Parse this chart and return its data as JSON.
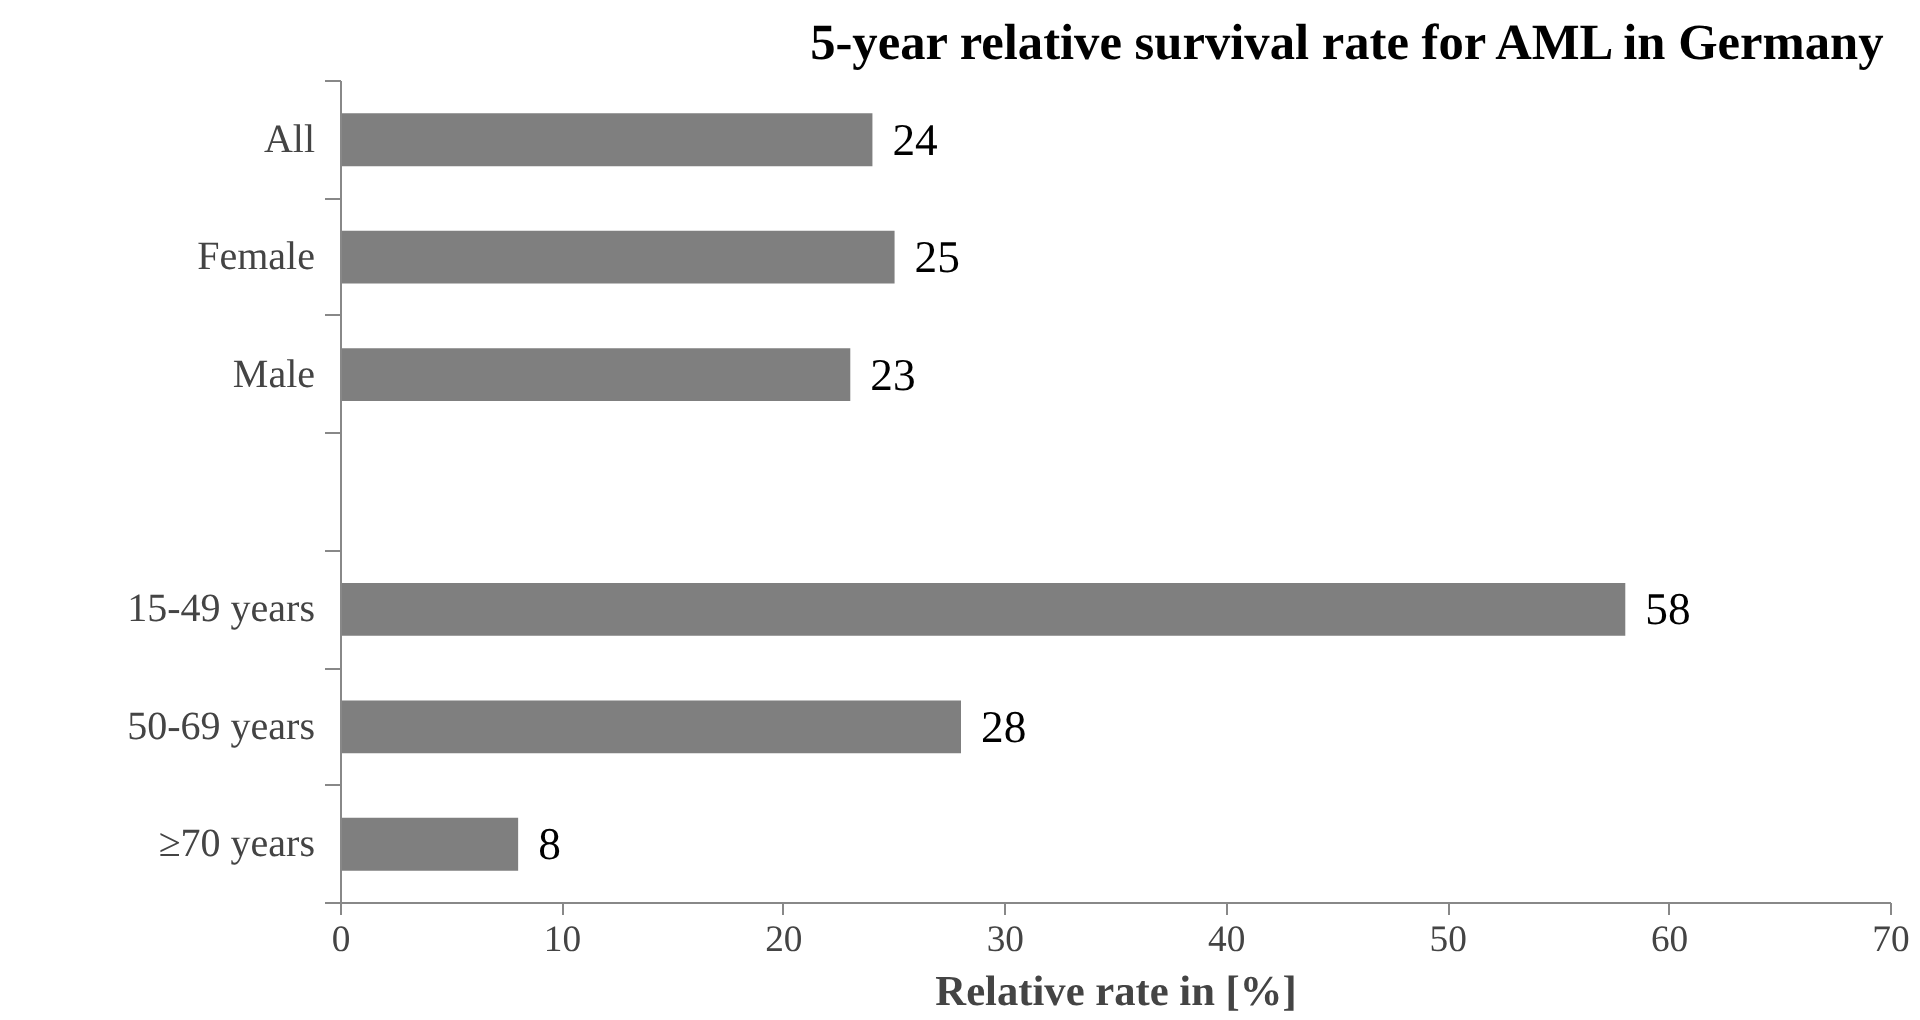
{
  "chart_data": {
    "type": "bar",
    "orientation": "horizontal",
    "title": "5-year relative survival rate for AML in Germany",
    "xlabel": "Relative rate in [%]",
    "categories": [
      "All",
      "Female",
      "Male",
      null,
      "15-49 years",
      "50-69 years",
      "≥70 years"
    ],
    "values": [
      24,
      25,
      23,
      null,
      58,
      28,
      8
    ],
    "color": "#7f7f7f",
    "xlim": [
      0,
      70
    ],
    "xticks": [
      0,
      10,
      20,
      30,
      40,
      50,
      60,
      70
    ],
    "data_labels": true,
    "grid": false
  }
}
